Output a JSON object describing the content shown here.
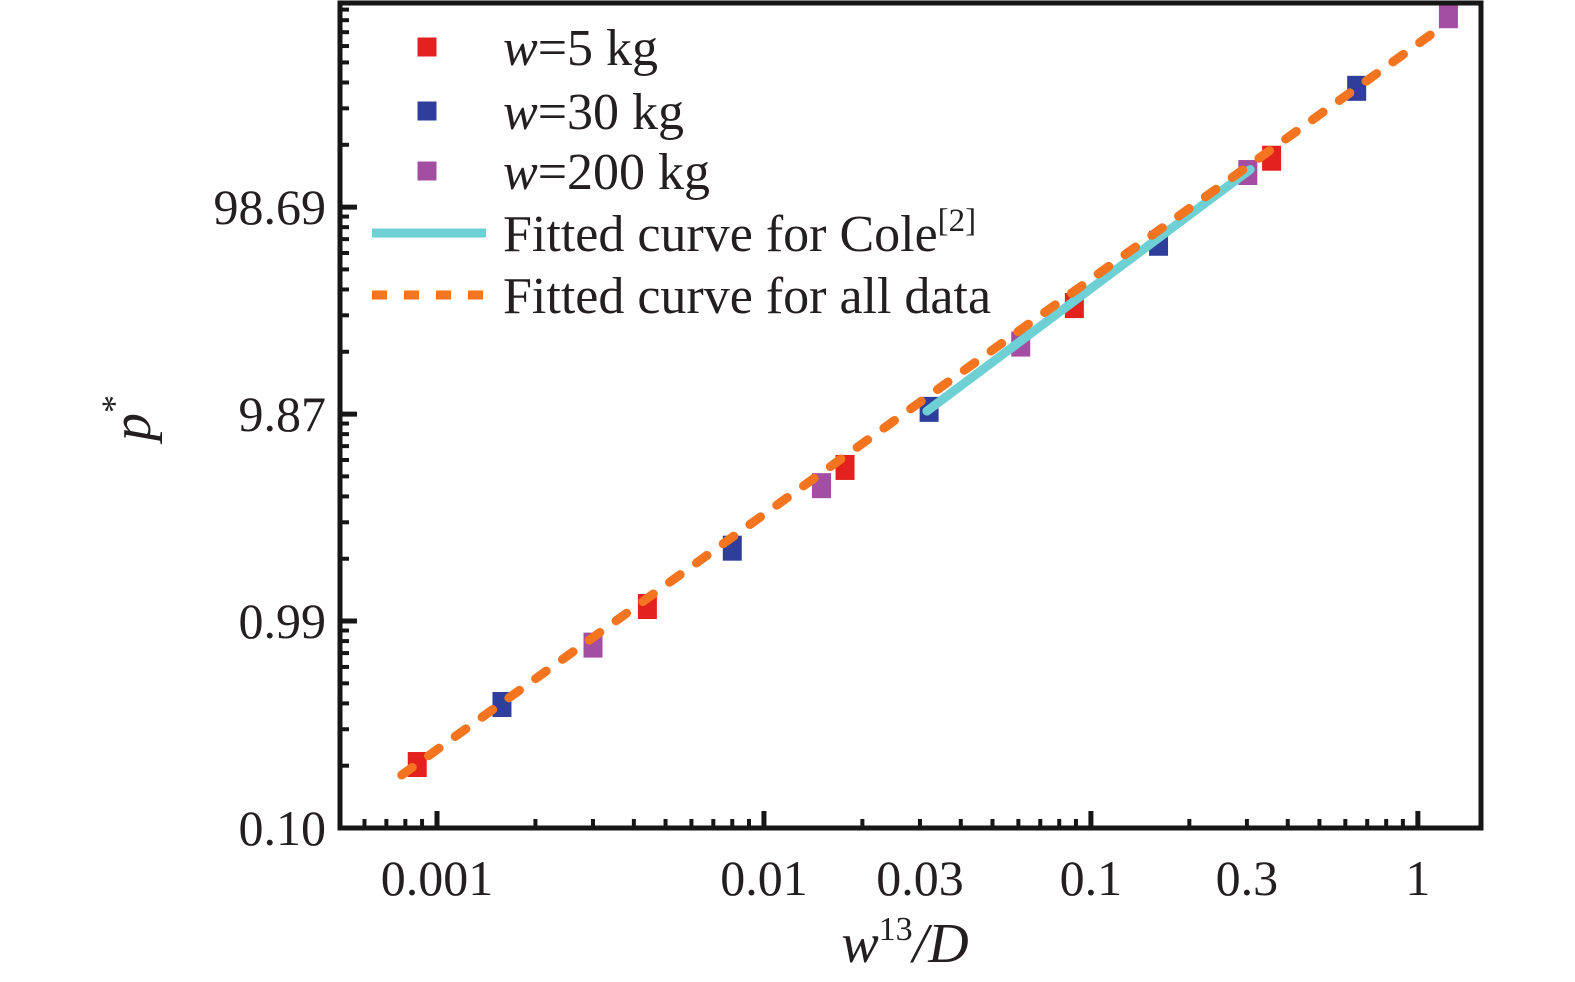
{
  "figure": {
    "background": "#ffffff",
    "text_color": "#231f20",
    "frame_color": "#161616"
  },
  "chart_data": {
    "type": "scatter",
    "xscale": "log",
    "yscale": "log",
    "title": "",
    "xlabel": {
      "base": "w",
      "sup": "13",
      "rest": "/D"
    },
    "ylabel": {
      "base": "p",
      "sup": "*"
    },
    "xlim": [
      0.000505,
      1.56
    ],
    "ylim": [
      0.0987,
      956
    ],
    "grid": false,
    "legend_position": "upper-left",
    "x_ticks": [
      {
        "v": 0.001,
        "label": "0.001"
      },
      {
        "v": 0.01,
        "label": "0.01"
      },
      {
        "v": 0.03,
        "label": "0.03"
      },
      {
        "v": 0.1,
        "label": "0.1"
      },
      {
        "v": 0.3,
        "label": "0.3"
      },
      {
        "v": 1,
        "label": "1"
      }
    ],
    "y_ticks": [
      {
        "v": 98.69,
        "label": "98.69"
      },
      {
        "v": 9.87,
        "label": "9.87"
      },
      {
        "v": 0.99,
        "label": "0.99"
      },
      {
        "v": 0.0987,
        "label": "0.10"
      }
    ],
    "series": [
      {
        "label_it": "w",
        "label_rest": "=5 kg",
        "color": "#e3211f",
        "marker": "square",
        "points": [
          [
            0.00087,
            0.2
          ],
          [
            0.0044,
            1.16
          ],
          [
            0.0177,
            5.45
          ],
          [
            0.089,
            33
          ],
          [
            0.357,
            170
          ]
        ]
      },
      {
        "label_it": "w",
        "label_rest": "=30 kg",
        "color": "#2e3e9a",
        "marker": "square",
        "points": [
          [
            0.00158,
            0.39
          ],
          [
            0.008,
            2.22
          ],
          [
            0.032,
            10.4
          ],
          [
            0.161,
            66
          ],
          [
            0.65,
            370
          ]
        ]
      },
      {
        "label_it": "w",
        "label_rest": "=200 kg",
        "color": "#a44ea3",
        "marker": "square",
        "points": [
          [
            0.003,
            0.755
          ],
          [
            0.015,
            4.45
          ],
          [
            0.061,
            21.5
          ],
          [
            0.302,
            145
          ],
          [
            1.24,
            830
          ]
        ]
      }
    ],
    "fits": [
      {
        "name_pre": "Fitted curve for Cole",
        "name_sup": "[2]",
        "color": "#6ed0d5",
        "style": "solid",
        "x": [
          0.0315,
          0.307
        ],
        "y": [
          10.2,
          150
        ]
      },
      {
        "name_pre": "Fitted curve for all data",
        "name_sup": "",
        "color": "#f4741f",
        "style": "dashed",
        "x": [
          0.00078,
          1.22
        ],
        "y": [
          0.178,
          760
        ]
      }
    ]
  }
}
